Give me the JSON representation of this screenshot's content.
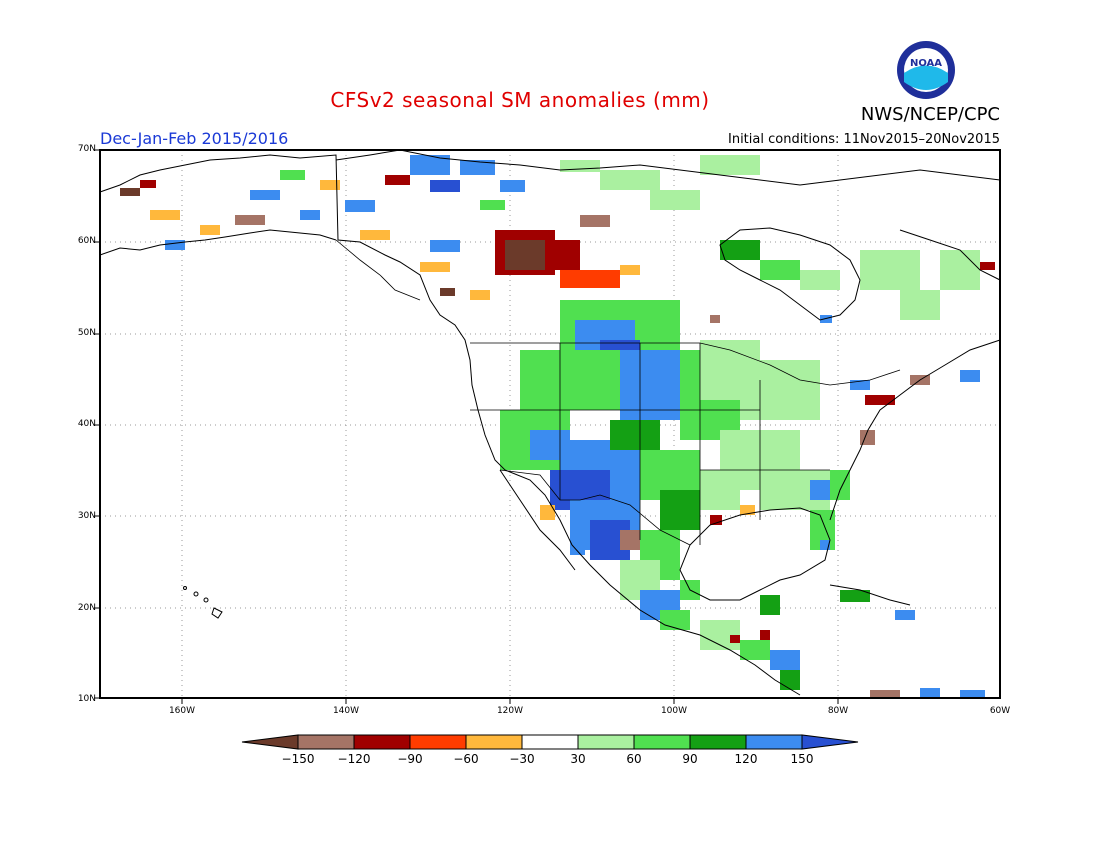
{
  "title": "CFSv2 seasonal SM anomalies (mm)",
  "agency": "NWS/NCEP/CPC",
  "logo_text": "NOAA",
  "period": "Dec-Jan-Feb 2015/2016",
  "initial_conditions": "Initial conditions: 11Nov2015–20Nov2015",
  "lat_labels": [
    "70N",
    "60N",
    "50N",
    "40N",
    "30N",
    "20N",
    "10N"
  ],
  "lon_labels": [
    "160W",
    "140W",
    "120W",
    "100W",
    "80W",
    "60W"
  ],
  "colorbar": {
    "labels": [
      "−150",
      "−120",
      "−90",
      "−60",
      "−30",
      "30",
      "60",
      "90",
      "120",
      "150"
    ],
    "colors": [
      "#6b3a2a",
      "#a57466",
      "#a00000",
      "#ff3c00",
      "#ffb83c",
      "#ffffff",
      "#aaf0a0",
      "#50e050",
      "#14a014",
      "#3c8cf0",
      "#2850d2"
    ]
  },
  "colors": {
    "title": "#e00000",
    "period": "#1a39d6"
  }
}
